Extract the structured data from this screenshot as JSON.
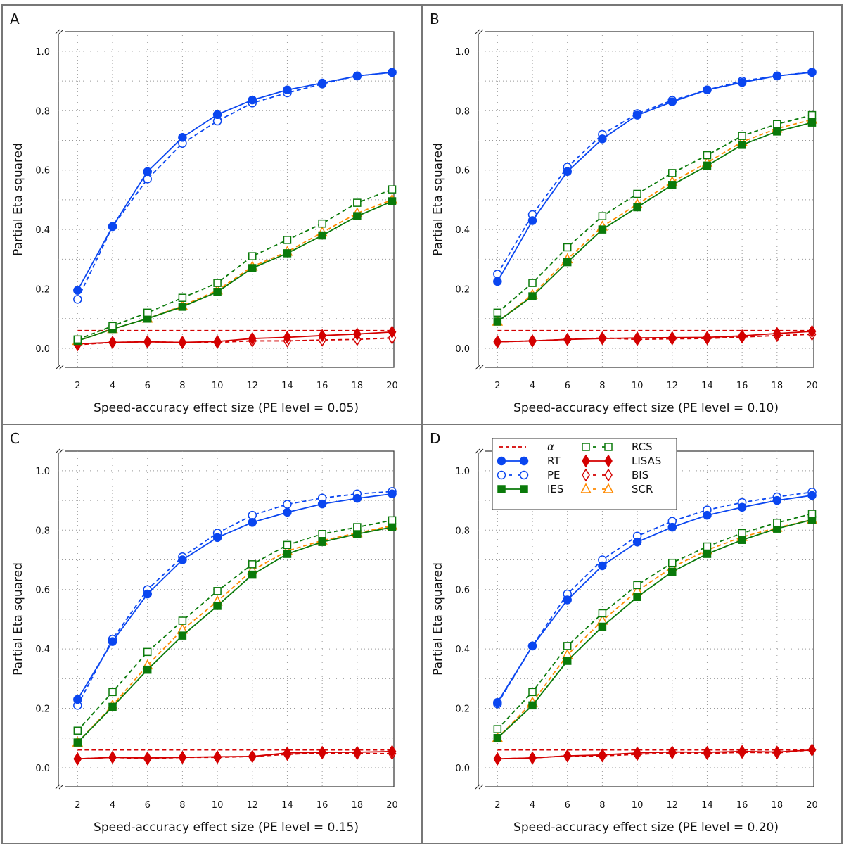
{
  "colors": {
    "blue": "#0a46f0",
    "green": "#0a7a0a",
    "red": "#d40000",
    "orange": "#ff8a00",
    "frame": "#777777"
  },
  "chart_data": [
    {
      "panel_label": "A",
      "type": "line",
      "xlabel": "Speed-accuracy effect size (PE level = 0.05)",
      "ylabel": "Partial Eta squared",
      "x": [
        2,
        4,
        6,
        8,
        10,
        12,
        14,
        16,
        18,
        20
      ],
      "xticks": [
        "2",
        "4",
        "6",
        "8",
        "10",
        "12",
        "14",
        "16",
        "18",
        "20"
      ],
      "yticks": [
        "0.0",
        "0.2",
        "0.4",
        "0.6",
        "0.8",
        "1.0"
      ],
      "xlim": [
        0.9,
        20.1
      ],
      "ylim": [
        -0.064,
        1.066
      ],
      "grid": true,
      "legend": false,
      "alpha": 0.06,
      "series": [
        {
          "name": "RT",
          "values": [
            0.195,
            0.41,
            0.595,
            0.71,
            0.787,
            0.836,
            0.87,
            0.893,
            0.917,
            0.929
          ]
        },
        {
          "name": "PE",
          "values": [
            0.165,
            0.41,
            0.57,
            0.69,
            0.765,
            0.826,
            0.86,
            0.89,
            0.917,
            0.929
          ]
        },
        {
          "name": "IES",
          "values": [
            0.025,
            0.065,
            0.1,
            0.14,
            0.19,
            0.27,
            0.32,
            0.38,
            0.445,
            0.495
          ]
        },
        {
          "name": "RCS",
          "values": [
            0.03,
            0.075,
            0.12,
            0.17,
            0.22,
            0.31,
            0.365,
            0.42,
            0.49,
            0.535
          ]
        },
        {
          "name": "LISAS",
          "values": [
            0.015,
            0.02,
            0.022,
            0.02,
            0.023,
            0.033,
            0.037,
            0.043,
            0.048,
            0.055
          ]
        },
        {
          "name": "BIS",
          "values": [
            0.012,
            0.02,
            0.022,
            0.02,
            0.02,
            0.025,
            0.025,
            0.028,
            0.03,
            0.035
          ]
        },
        {
          "name": "SCR",
          "values": [
            0.025,
            0.065,
            0.1,
            0.143,
            0.195,
            0.275,
            0.325,
            0.39,
            0.455,
            0.5
          ]
        }
      ]
    },
    {
      "panel_label": "B",
      "type": "line",
      "xlabel": "Speed-accuracy effect size (PE level = 0.10)",
      "ylabel": "Partial Eta squared",
      "x": [
        2,
        4,
        6,
        8,
        10,
        12,
        14,
        16,
        18,
        20
      ],
      "xticks": [
        "2",
        "4",
        "6",
        "8",
        "10",
        "12",
        "14",
        "16",
        "18",
        "20"
      ],
      "yticks": [
        "0.0",
        "0.2",
        "0.4",
        "0.6",
        "0.8",
        "1.0"
      ],
      "xlim": [
        0.9,
        20.1
      ],
      "ylim": [
        -0.064,
        1.066
      ],
      "grid": true,
      "legend": false,
      "alpha": 0.06,
      "series": [
        {
          "name": "RT",
          "values": [
            0.225,
            0.43,
            0.595,
            0.705,
            0.785,
            0.83,
            0.87,
            0.895,
            0.917,
            0.929
          ]
        },
        {
          "name": "PE",
          "values": [
            0.25,
            0.45,
            0.61,
            0.72,
            0.79,
            0.835,
            0.87,
            0.9,
            0.917,
            0.93
          ]
        },
        {
          "name": "IES",
          "values": [
            0.09,
            0.175,
            0.29,
            0.4,
            0.475,
            0.55,
            0.615,
            0.685,
            0.73,
            0.76
          ]
        },
        {
          "name": "RCS",
          "values": [
            0.12,
            0.22,
            0.34,
            0.445,
            0.52,
            0.59,
            0.65,
            0.715,
            0.755,
            0.785
          ]
        },
        {
          "name": "LISAS",
          "values": [
            0.022,
            0.025,
            0.03,
            0.033,
            0.035,
            0.036,
            0.037,
            0.042,
            0.05,
            0.057
          ]
        },
        {
          "name": "BIS",
          "values": [
            0.022,
            0.025,
            0.03,
            0.035,
            0.03,
            0.032,
            0.033,
            0.038,
            0.043,
            0.047
          ]
        },
        {
          "name": "SCR",
          "values": [
            0.09,
            0.18,
            0.3,
            0.41,
            0.485,
            0.56,
            0.625,
            0.695,
            0.74,
            0.77
          ]
        }
      ]
    },
    {
      "panel_label": "C",
      "type": "line",
      "xlabel": "Speed-accuracy effect size (PE level = 0.15)",
      "ylabel": "Partial Eta squared",
      "x": [
        2,
        4,
        6,
        8,
        10,
        12,
        14,
        16,
        18,
        20
      ],
      "xticks": [
        "2",
        "4",
        "6",
        "8",
        "10",
        "12",
        "14",
        "16",
        "18",
        "20"
      ],
      "yticks": [
        "0.0",
        "0.2",
        "0.4",
        "0.6",
        "0.8",
        "1.0"
      ],
      "xlim": [
        0.9,
        20.1
      ],
      "ylim": [
        -0.064,
        1.066
      ],
      "grid": true,
      "legend": false,
      "alpha": 0.06,
      "series": [
        {
          "name": "RT",
          "values": [
            0.23,
            0.425,
            0.585,
            0.7,
            0.775,
            0.826,
            0.86,
            0.888,
            0.907,
            0.922
          ]
        },
        {
          "name": "PE",
          "values": [
            0.21,
            0.433,
            0.6,
            0.71,
            0.79,
            0.85,
            0.887,
            0.908,
            0.922,
            0.93
          ]
        },
        {
          "name": "IES",
          "values": [
            0.085,
            0.205,
            0.33,
            0.445,
            0.545,
            0.65,
            0.72,
            0.76,
            0.787,
            0.81
          ]
        },
        {
          "name": "RCS",
          "values": [
            0.125,
            0.255,
            0.39,
            0.495,
            0.595,
            0.685,
            0.75,
            0.787,
            0.81,
            0.833
          ]
        },
        {
          "name": "LISAS",
          "values": [
            0.03,
            0.035,
            0.033,
            0.035,
            0.037,
            0.038,
            0.05,
            0.052,
            0.052,
            0.055
          ]
        },
        {
          "name": "BIS",
          "values": [
            0.03,
            0.035,
            0.03,
            0.035,
            0.035,
            0.038,
            0.045,
            0.05,
            0.048,
            0.048
          ]
        },
        {
          "name": "SCR",
          "values": [
            0.085,
            0.21,
            0.345,
            0.465,
            0.56,
            0.665,
            0.73,
            0.765,
            0.79,
            0.815
          ]
        }
      ]
    },
    {
      "panel_label": "D",
      "type": "line",
      "xlabel": "Speed-accuracy effect size (PE level = 0.20)",
      "ylabel": "Partial Eta squared",
      "x": [
        2,
        4,
        6,
        8,
        10,
        12,
        14,
        16,
        18,
        20
      ],
      "xticks": [
        "2",
        "4",
        "6",
        "8",
        "10",
        "12",
        "14",
        "16",
        "18",
        "20"
      ],
      "yticks": [
        "0.0",
        "0.2",
        "0.4",
        "0.6",
        "0.8",
        "1.0"
      ],
      "xlim": [
        0.9,
        20.1
      ],
      "ylim": [
        -0.064,
        1.066
      ],
      "grid": true,
      "legend": "top-left",
      "alpha": 0.06,
      "series": [
        {
          "name": "RT",
          "values": [
            0.22,
            0.41,
            0.565,
            0.68,
            0.76,
            0.81,
            0.85,
            0.877,
            0.9,
            0.917
          ]
        },
        {
          "name": "PE",
          "values": [
            0.215,
            0.41,
            0.585,
            0.7,
            0.78,
            0.83,
            0.868,
            0.893,
            0.912,
            0.928
          ]
        },
        {
          "name": "IES",
          "values": [
            0.1,
            0.21,
            0.36,
            0.475,
            0.575,
            0.66,
            0.72,
            0.767,
            0.805,
            0.835
          ]
        },
        {
          "name": "RCS",
          "values": [
            0.13,
            0.255,
            0.41,
            0.52,
            0.615,
            0.69,
            0.745,
            0.79,
            0.825,
            0.855
          ]
        },
        {
          "name": "LISAS",
          "values": [
            0.03,
            0.033,
            0.04,
            0.043,
            0.05,
            0.053,
            0.052,
            0.055,
            0.053,
            0.06
          ]
        },
        {
          "name": "BIS",
          "values": [
            0.03,
            0.033,
            0.04,
            0.04,
            0.045,
            0.05,
            0.048,
            0.052,
            0.05,
            0.06
          ]
        },
        {
          "name": "SCR",
          "values": [
            0.1,
            0.22,
            0.38,
            0.495,
            0.595,
            0.675,
            0.733,
            0.777,
            0.808,
            0.835
          ]
        }
      ]
    }
  ],
  "legend": {
    "entries": [
      {
        "name": "α",
        "style": "alpha"
      },
      {
        "name": "RT",
        "style": "RT"
      },
      {
        "name": "PE",
        "style": "PE"
      },
      {
        "name": "IES",
        "style": "IES"
      },
      {
        "name": "RCS",
        "style": "RCS"
      },
      {
        "name": "LISAS",
        "style": "LISAS"
      },
      {
        "name": "BIS",
        "style": "BIS"
      },
      {
        "name": "SCR",
        "style": "SCR"
      }
    ]
  }
}
